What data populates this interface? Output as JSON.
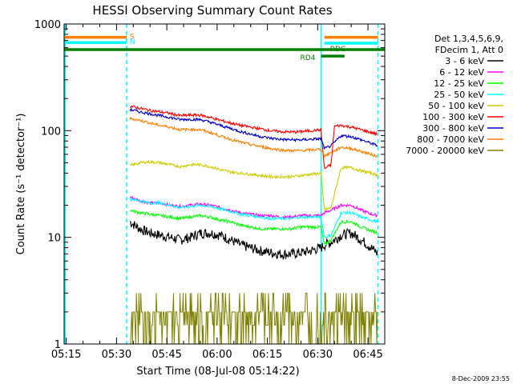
{
  "chart_data": {
    "type": "line",
    "title": "HESSI Observing Summary Count Rates",
    "xlabel": "Start Time (08-Jul-08 05:14:22)",
    "ylabel": "Count Rate (s⁻¹ detector⁻¹)",
    "x_axis_minutes_start": "05:14:22",
    "xlim": [
      "05:14:22",
      "06:50:00"
    ],
    "ylim": [
      1,
      1000
    ],
    "yscale": "log",
    "x_ticks": [
      "05:15",
      "05:30",
      "05:45",
      "06:00",
      "06:15",
      "06:30",
      "06:45"
    ],
    "y_ticks": [
      "1",
      "10",
      "100",
      "1000"
    ],
    "grid": false,
    "legend_title_lines": [
      "Det 1,3,4,5,6,9,",
      "FDecim 1, Att 0"
    ],
    "legend_position": "right",
    "timestamp": "8-Dec-2009 23:55",
    "series": [
      {
        "name": "3 - 6 keV",
        "color": "#000000",
        "points": [
          [
            "05:34",
            14
          ],
          [
            "05:37",
            12
          ],
          [
            "05:40",
            11
          ],
          [
            "05:43",
            10.5
          ],
          [
            "05:46",
            10
          ],
          [
            "05:49",
            9.5
          ],
          [
            "05:52",
            10
          ],
          [
            "05:55",
            11
          ],
          [
            "05:58",
            11
          ],
          [
            "06:01",
            10.5
          ],
          [
            "06:04",
            9.5
          ],
          [
            "06:07",
            8.5
          ],
          [
            "06:10",
            8
          ],
          [
            "06:13",
            7.5
          ],
          [
            "06:16",
            7.2
          ],
          [
            "06:19",
            7
          ],
          [
            "06:22",
            7
          ],
          [
            "06:25",
            7.2
          ],
          [
            "06:28",
            7.5
          ],
          [
            "06:31",
            8
          ],
          [
            "06:32",
            8.5
          ],
          [
            "06:34",
            9
          ],
          [
            "06:37",
            10.5
          ],
          [
            "06:40",
            11
          ],
          [
            "06:43",
            9.5
          ],
          [
            "06:46",
            8
          ],
          [
            "06:48",
            7
          ]
        ]
      },
      {
        "name": "6 - 12 keV",
        "color": "#ff00ff",
        "points": [
          [
            "05:34",
            24
          ],
          [
            "05:37",
            22
          ],
          [
            "05:40",
            21
          ],
          [
            "05:43",
            21
          ],
          [
            "05:46",
            20
          ],
          [
            "05:49",
            19.5
          ],
          [
            "05:52",
            20
          ],
          [
            "05:55",
            20.5
          ],
          [
            "05:58",
            20
          ],
          [
            "06:01",
            19
          ],
          [
            "06:04",
            18
          ],
          [
            "06:07",
            17
          ],
          [
            "06:10",
            16.5
          ],
          [
            "06:13",
            16
          ],
          [
            "06:16",
            16
          ],
          [
            "06:19",
            15.5
          ],
          [
            "06:22",
            15.5
          ],
          [
            "06:25",
            16
          ],
          [
            "06:28",
            16
          ],
          [
            "06:31",
            16
          ],
          [
            "06:32",
            17
          ],
          [
            "06:34",
            18
          ],
          [
            "06:37",
            20
          ],
          [
            "06:40",
            20
          ],
          [
            "06:43",
            18
          ],
          [
            "06:46",
            16.5
          ],
          [
            "06:48",
            16
          ]
        ]
      },
      {
        "name": "12 - 25 keV",
        "color": "#00ff00",
        "points": [
          [
            "05:34",
            18
          ],
          [
            "05:37",
            17
          ],
          [
            "05:40",
            16.5
          ],
          [
            "05:43",
            16
          ],
          [
            "05:46",
            15.5
          ],
          [
            "05:49",
            15
          ],
          [
            "05:52",
            15.5
          ],
          [
            "05:55",
            16
          ],
          [
            "05:58",
            15.5
          ],
          [
            "06:01",
            14.5
          ],
          [
            "06:04",
            14
          ],
          [
            "06:07",
            13
          ],
          [
            "06:10",
            12.5
          ],
          [
            "06:13",
            12
          ],
          [
            "06:16",
            12
          ],
          [
            "06:19",
            12
          ],
          [
            "06:22",
            12
          ],
          [
            "06:25",
            12.5
          ],
          [
            "06:28",
            12.5
          ],
          [
            "06:31",
            12.5
          ],
          [
            "06:32",
            8.5
          ],
          [
            "06:34",
            9.5
          ],
          [
            "06:37",
            14
          ],
          [
            "06:40",
            14
          ],
          [
            "06:43",
            12.5
          ],
          [
            "06:46",
            11.5
          ],
          [
            "06:48",
            11
          ]
        ]
      },
      {
        "name": "25 - 50 keV",
        "color": "#00ffff",
        "points": [
          [
            "05:34",
            23
          ],
          [
            "05:37",
            22
          ],
          [
            "05:40",
            21
          ],
          [
            "05:43",
            21
          ],
          [
            "05:46",
            20
          ],
          [
            "05:49",
            19
          ],
          [
            "05:52",
            19.5
          ],
          [
            "05:55",
            20
          ],
          [
            "05:58",
            19.5
          ],
          [
            "06:01",
            18.5
          ],
          [
            "06:04",
            17.5
          ],
          [
            "06:07",
            16.5
          ],
          [
            "06:10",
            16
          ],
          [
            "06:13",
            15.5
          ],
          [
            "06:16",
            15
          ],
          [
            "06:19",
            15
          ],
          [
            "06:22",
            15
          ],
          [
            "06:25",
            15.5
          ],
          [
            "06:28",
            15.5
          ],
          [
            "06:31",
            15.5
          ],
          [
            "06:32",
            10
          ],
          [
            "06:34",
            10.5
          ],
          [
            "06:37",
            17
          ],
          [
            "06:40",
            17
          ],
          [
            "06:43",
            15.5
          ],
          [
            "06:46",
            14.5
          ],
          [
            "06:48",
            14
          ]
        ]
      },
      {
        "name": "50 - 100 keV",
        "color": "#cccc00",
        "points": [
          [
            "05:34",
            47
          ],
          [
            "05:37",
            50
          ],
          [
            "05:40",
            51
          ],
          [
            "05:43",
            50
          ],
          [
            "05:46",
            48
          ],
          [
            "05:49",
            46
          ],
          [
            "05:52",
            48
          ],
          [
            "05:55",
            48
          ],
          [
            "05:58",
            46
          ],
          [
            "06:01",
            43
          ],
          [
            "06:04",
            41
          ],
          [
            "06:07",
            40
          ],
          [
            "06:10",
            39
          ],
          [
            "06:13",
            38
          ],
          [
            "06:16",
            37
          ],
          [
            "06:19",
            37
          ],
          [
            "06:22",
            37
          ],
          [
            "06:25",
            38
          ],
          [
            "06:28",
            39
          ],
          [
            "06:31",
            40
          ],
          [
            "06:32",
            18
          ],
          [
            "06:34",
            19
          ],
          [
            "06:37",
            45
          ],
          [
            "06:40",
            45
          ],
          [
            "06:43",
            42
          ],
          [
            "06:46",
            40
          ],
          [
            "06:48",
            38
          ]
        ]
      },
      {
        "name": "100 - 300 keV",
        "color": "#ff0000",
        "points": [
          [
            "05:34",
            170
          ],
          [
            "05:37",
            162
          ],
          [
            "05:40",
            155
          ],
          [
            "05:43",
            150
          ],
          [
            "05:46",
            145
          ],
          [
            "05:49",
            138
          ],
          [
            "05:52",
            140
          ],
          [
            "05:55",
            140
          ],
          [
            "05:58",
            133
          ],
          [
            "06:01",
            125
          ],
          [
            "06:04",
            118
          ],
          [
            "06:07",
            112
          ],
          [
            "06:10",
            108
          ],
          [
            "06:13",
            104
          ],
          [
            "06:16",
            100
          ],
          [
            "06:19",
            98
          ],
          [
            "06:22",
            97
          ],
          [
            "06:25",
            98
          ],
          [
            "06:28",
            100
          ],
          [
            "06:31",
            102
          ],
          [
            "06:32",
            44
          ],
          [
            "06:34",
            48
          ],
          [
            "06:35",
            110
          ],
          [
            "06:37",
            112
          ],
          [
            "06:40",
            108
          ],
          [
            "06:43",
            102
          ],
          [
            "06:46",
            96
          ],
          [
            "06:48",
            92
          ]
        ]
      },
      {
        "name": "300 - 800 keV",
        "color": "#0000cc",
        "points": [
          [
            "05:34",
            158
          ],
          [
            "05:37",
            150
          ],
          [
            "05:40",
            144
          ],
          [
            "05:43",
            138
          ],
          [
            "05:46",
            133
          ],
          [
            "05:49",
            127
          ],
          [
            "05:52",
            128
          ],
          [
            "05:55",
            127
          ],
          [
            "05:58",
            120
          ],
          [
            "06:01",
            112
          ],
          [
            "06:04",
            105
          ],
          [
            "06:07",
            98
          ],
          [
            "06:10",
            93
          ],
          [
            "06:13",
            88
          ],
          [
            "06:16",
            85
          ],
          [
            "06:19",
            83
          ],
          [
            "06:22",
            82
          ],
          [
            "06:25",
            82
          ],
          [
            "06:28",
            83
          ],
          [
            "06:31",
            84
          ],
          [
            "06:32",
            68
          ],
          [
            "06:34",
            72
          ],
          [
            "06:37",
            90
          ],
          [
            "06:40",
            88
          ],
          [
            "06:43",
            82
          ],
          [
            "06:46",
            76
          ],
          [
            "06:48",
            72
          ]
        ]
      },
      {
        "name": "800 - 7000 keV",
        "color": "#ff7f00",
        "points": [
          [
            "05:34",
            130
          ],
          [
            "05:37",
            125
          ],
          [
            "05:40",
            118
          ],
          [
            "05:43",
            112
          ],
          [
            "05:46",
            108
          ],
          [
            "05:49",
            102
          ],
          [
            "05:52",
            103
          ],
          [
            "05:55",
            102
          ],
          [
            "05:58",
            96
          ],
          [
            "06:01",
            89
          ],
          [
            "06:04",
            83
          ],
          [
            "06:07",
            78
          ],
          [
            "06:10",
            74
          ],
          [
            "06:13",
            71
          ],
          [
            "06:16",
            68
          ],
          [
            "06:19",
            66
          ],
          [
            "06:22",
            65
          ],
          [
            "06:25",
            65
          ],
          [
            "06:28",
            66
          ],
          [
            "06:31",
            67
          ],
          [
            "06:32",
            58
          ],
          [
            "06:34",
            62
          ],
          [
            "06:37",
            70
          ],
          [
            "06:40",
            68
          ],
          [
            "06:43",
            64
          ],
          [
            "06:46",
            60
          ],
          [
            "06:48",
            57
          ]
        ]
      },
      {
        "name": "7000 - 20000 keV",
        "color": "#808000",
        "points": [
          [
            "05:34",
            1.5
          ],
          [
            "05:37",
            2
          ],
          [
            "05:40",
            1.5
          ],
          [
            "05:43",
            2
          ],
          [
            "05:46",
            3
          ],
          [
            "05:49",
            2
          ],
          [
            "05:52",
            2
          ],
          [
            "05:55",
            1.5
          ],
          [
            "05:58",
            2
          ],
          [
            "06:01",
            2
          ],
          [
            "06:04",
            1.5
          ],
          [
            "06:07",
            2
          ],
          [
            "06:10",
            2
          ],
          [
            "06:13",
            1.5
          ],
          [
            "06:16",
            2
          ],
          [
            "06:19",
            2
          ],
          [
            "06:22",
            2
          ],
          [
            "06:25",
            1.5
          ],
          [
            "06:28",
            2
          ],
          [
            "06:31",
            3
          ],
          [
            "06:34",
            3
          ],
          [
            "06:37",
            4
          ],
          [
            "06:40",
            3
          ],
          [
            "06:43",
            2
          ],
          [
            "06:46",
            3
          ],
          [
            "06:48",
            2
          ]
        ]
      }
    ],
    "bars": [
      {
        "label": "S",
        "color": "#ff7f00",
        "value": 750,
        "start": "05:14:22",
        "end": "05:33"
      },
      {
        "label": "N",
        "color": "#00ffff",
        "value": 670,
        "start": "05:14:22",
        "end": "05:33"
      },
      {
        "label": "",
        "color": "#ff7f00",
        "value": 750,
        "start": "06:32",
        "end": "06:48"
      },
      {
        "label": "",
        "color": "#00ffff",
        "value": 660,
        "start": "06:32",
        "end": "06:48"
      },
      {
        "label": "",
        "color": "#008000",
        "value": 575,
        "start": "05:14:22",
        "end": "06:50"
      },
      {
        "label": "RD4",
        "color": "#008000",
        "value": 500,
        "start": "06:31",
        "end": "06:38"
      },
      {
        "label": "RDC",
        "color": "#008000",
        "value": 575,
        "start": "06:32",
        "end": "06:32"
      }
    ],
    "vlines": [
      {
        "at": "05:14:40",
        "color": "#00ffff",
        "style": "solid"
      },
      {
        "at": "05:33",
        "color": "#00ffff",
        "style": "dashed"
      },
      {
        "at": "06:31",
        "color": "#00ffff",
        "style": "solid"
      },
      {
        "at": "06:48",
        "color": "#00ffff",
        "style": "dashed"
      }
    ]
  }
}
